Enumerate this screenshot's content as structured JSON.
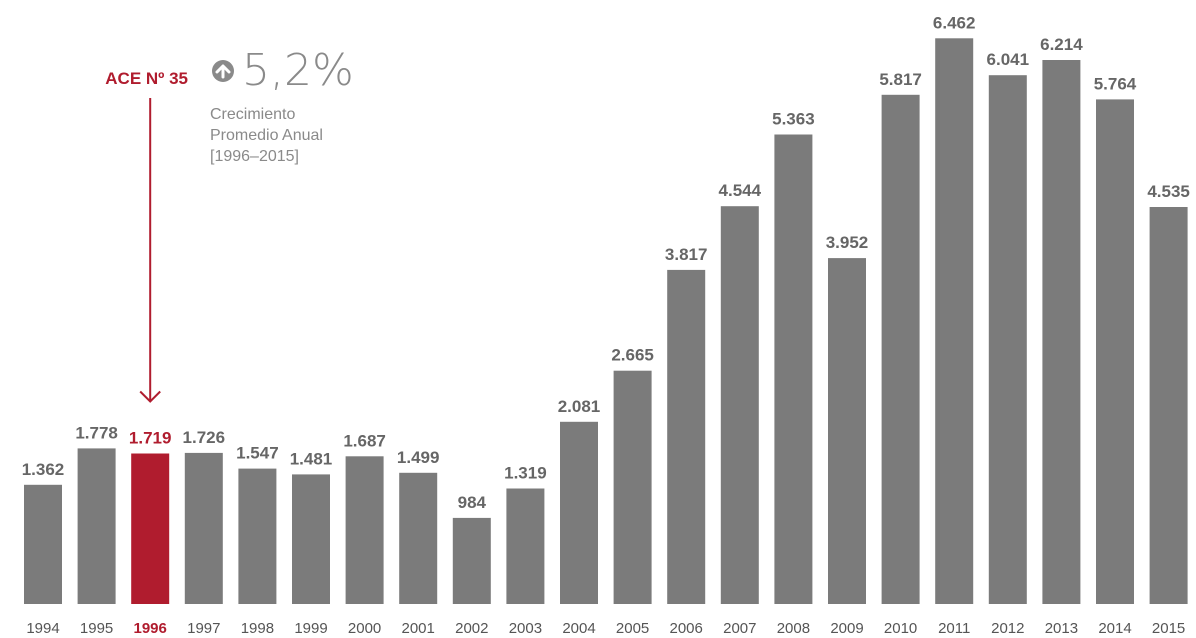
{
  "chart_data": {
    "type": "bar",
    "categories": [
      "1994",
      "1995",
      "1996",
      "1997",
      "1998",
      "1999",
      "2000",
      "2001",
      "2002",
      "2003",
      "2004",
      "2005",
      "2006",
      "2007",
      "2008",
      "2009",
      "2010",
      "2011",
      "2012",
      "2013",
      "2014",
      "2015"
    ],
    "values": [
      1362,
      1778,
      1719,
      1726,
      1547,
      1481,
      1687,
      1499,
      984,
      1319,
      2081,
      2665,
      3817,
      4544,
      5363,
      3952,
      5817,
      6462,
      6041,
      6214,
      5764,
      4535
    ],
    "value_labels": [
      "1.362",
      "1.778",
      "1.719",
      "1.726",
      "1.547",
      "1.481",
      "1.687",
      "1.499",
      "984",
      "1.319",
      "2.081",
      "2.665",
      "3.817",
      "4.544",
      "5.363",
      "3.952",
      "5.817",
      "6.462",
      "6.041",
      "6.214",
      "5.764",
      "4.535"
    ],
    "highlight_category": "1996",
    "ylim": [
      0,
      6900
    ],
    "grid": false,
    "legend": "none",
    "annotation": {
      "text": "ACE Nº 35",
      "target": "1996"
    },
    "title": "",
    "xlabel": "",
    "ylabel": ""
  },
  "stat": {
    "value": "5,2%",
    "label": "Crecimiento\nPromedio Anual\n [1996–2015]",
    "icon": "arrow-up-circle-icon"
  },
  "colors": {
    "bar": "#7b7b7b",
    "highlight": "#b01c2e",
    "label": "#666666",
    "axis_label": "#555555"
  }
}
